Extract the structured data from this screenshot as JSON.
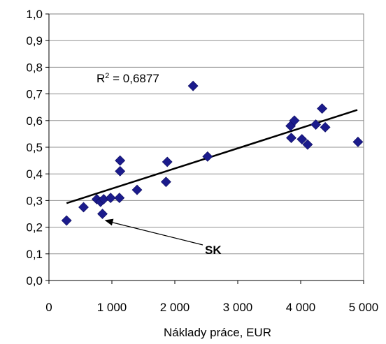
{
  "chart_data": {
    "type": "scatter",
    "xlabel": "Náklady práce, EUR",
    "ylabel": "",
    "xlim": [
      0,
      5000
    ],
    "ylim": [
      0,
      1.0
    ],
    "x_ticks": [
      "0",
      "1 000",
      "2 000",
      "3 000",
      "4 000",
      "5 000"
    ],
    "y_ticks": [
      "0,0",
      "0,1",
      "0,2",
      "0,3",
      "0,4",
      "0,5",
      "0,6",
      "0,7",
      "0,8",
      "0,9",
      "1,0"
    ],
    "grid": "horizontal",
    "marker_color": "#1b1b8c",
    "trendline": {
      "type": "linear",
      "color": "#000000",
      "start": [
        280,
        0.29
      ],
      "end": [
        4900,
        0.64
      ],
      "r2_label": "R",
      "r2_sup": "2",
      "r2_value": " = 0,6877"
    },
    "annotation": {
      "label": "SK",
      "point": [
        850,
        0.25
      ]
    },
    "points": [
      [
        280,
        0.225
      ],
      [
        550,
        0.275
      ],
      [
        760,
        0.305
      ],
      [
        820,
        0.295
      ],
      [
        850,
        0.25
      ],
      [
        870,
        0.305
      ],
      [
        980,
        0.31
      ],
      [
        1120,
        0.31
      ],
      [
        1130,
        0.45
      ],
      [
        1130,
        0.41
      ],
      [
        1400,
        0.34
      ],
      [
        1860,
        0.37
      ],
      [
        1880,
        0.445
      ],
      [
        2290,
        0.73
      ],
      [
        2520,
        0.465
      ],
      [
        3840,
        0.58
      ],
      [
        3850,
        0.535
      ],
      [
        3900,
        0.6
      ],
      [
        4020,
        0.53
      ],
      [
        4110,
        0.51
      ],
      [
        4240,
        0.585
      ],
      [
        4340,
        0.645
      ],
      [
        4390,
        0.575
      ],
      [
        4910,
        0.52
      ]
    ]
  }
}
